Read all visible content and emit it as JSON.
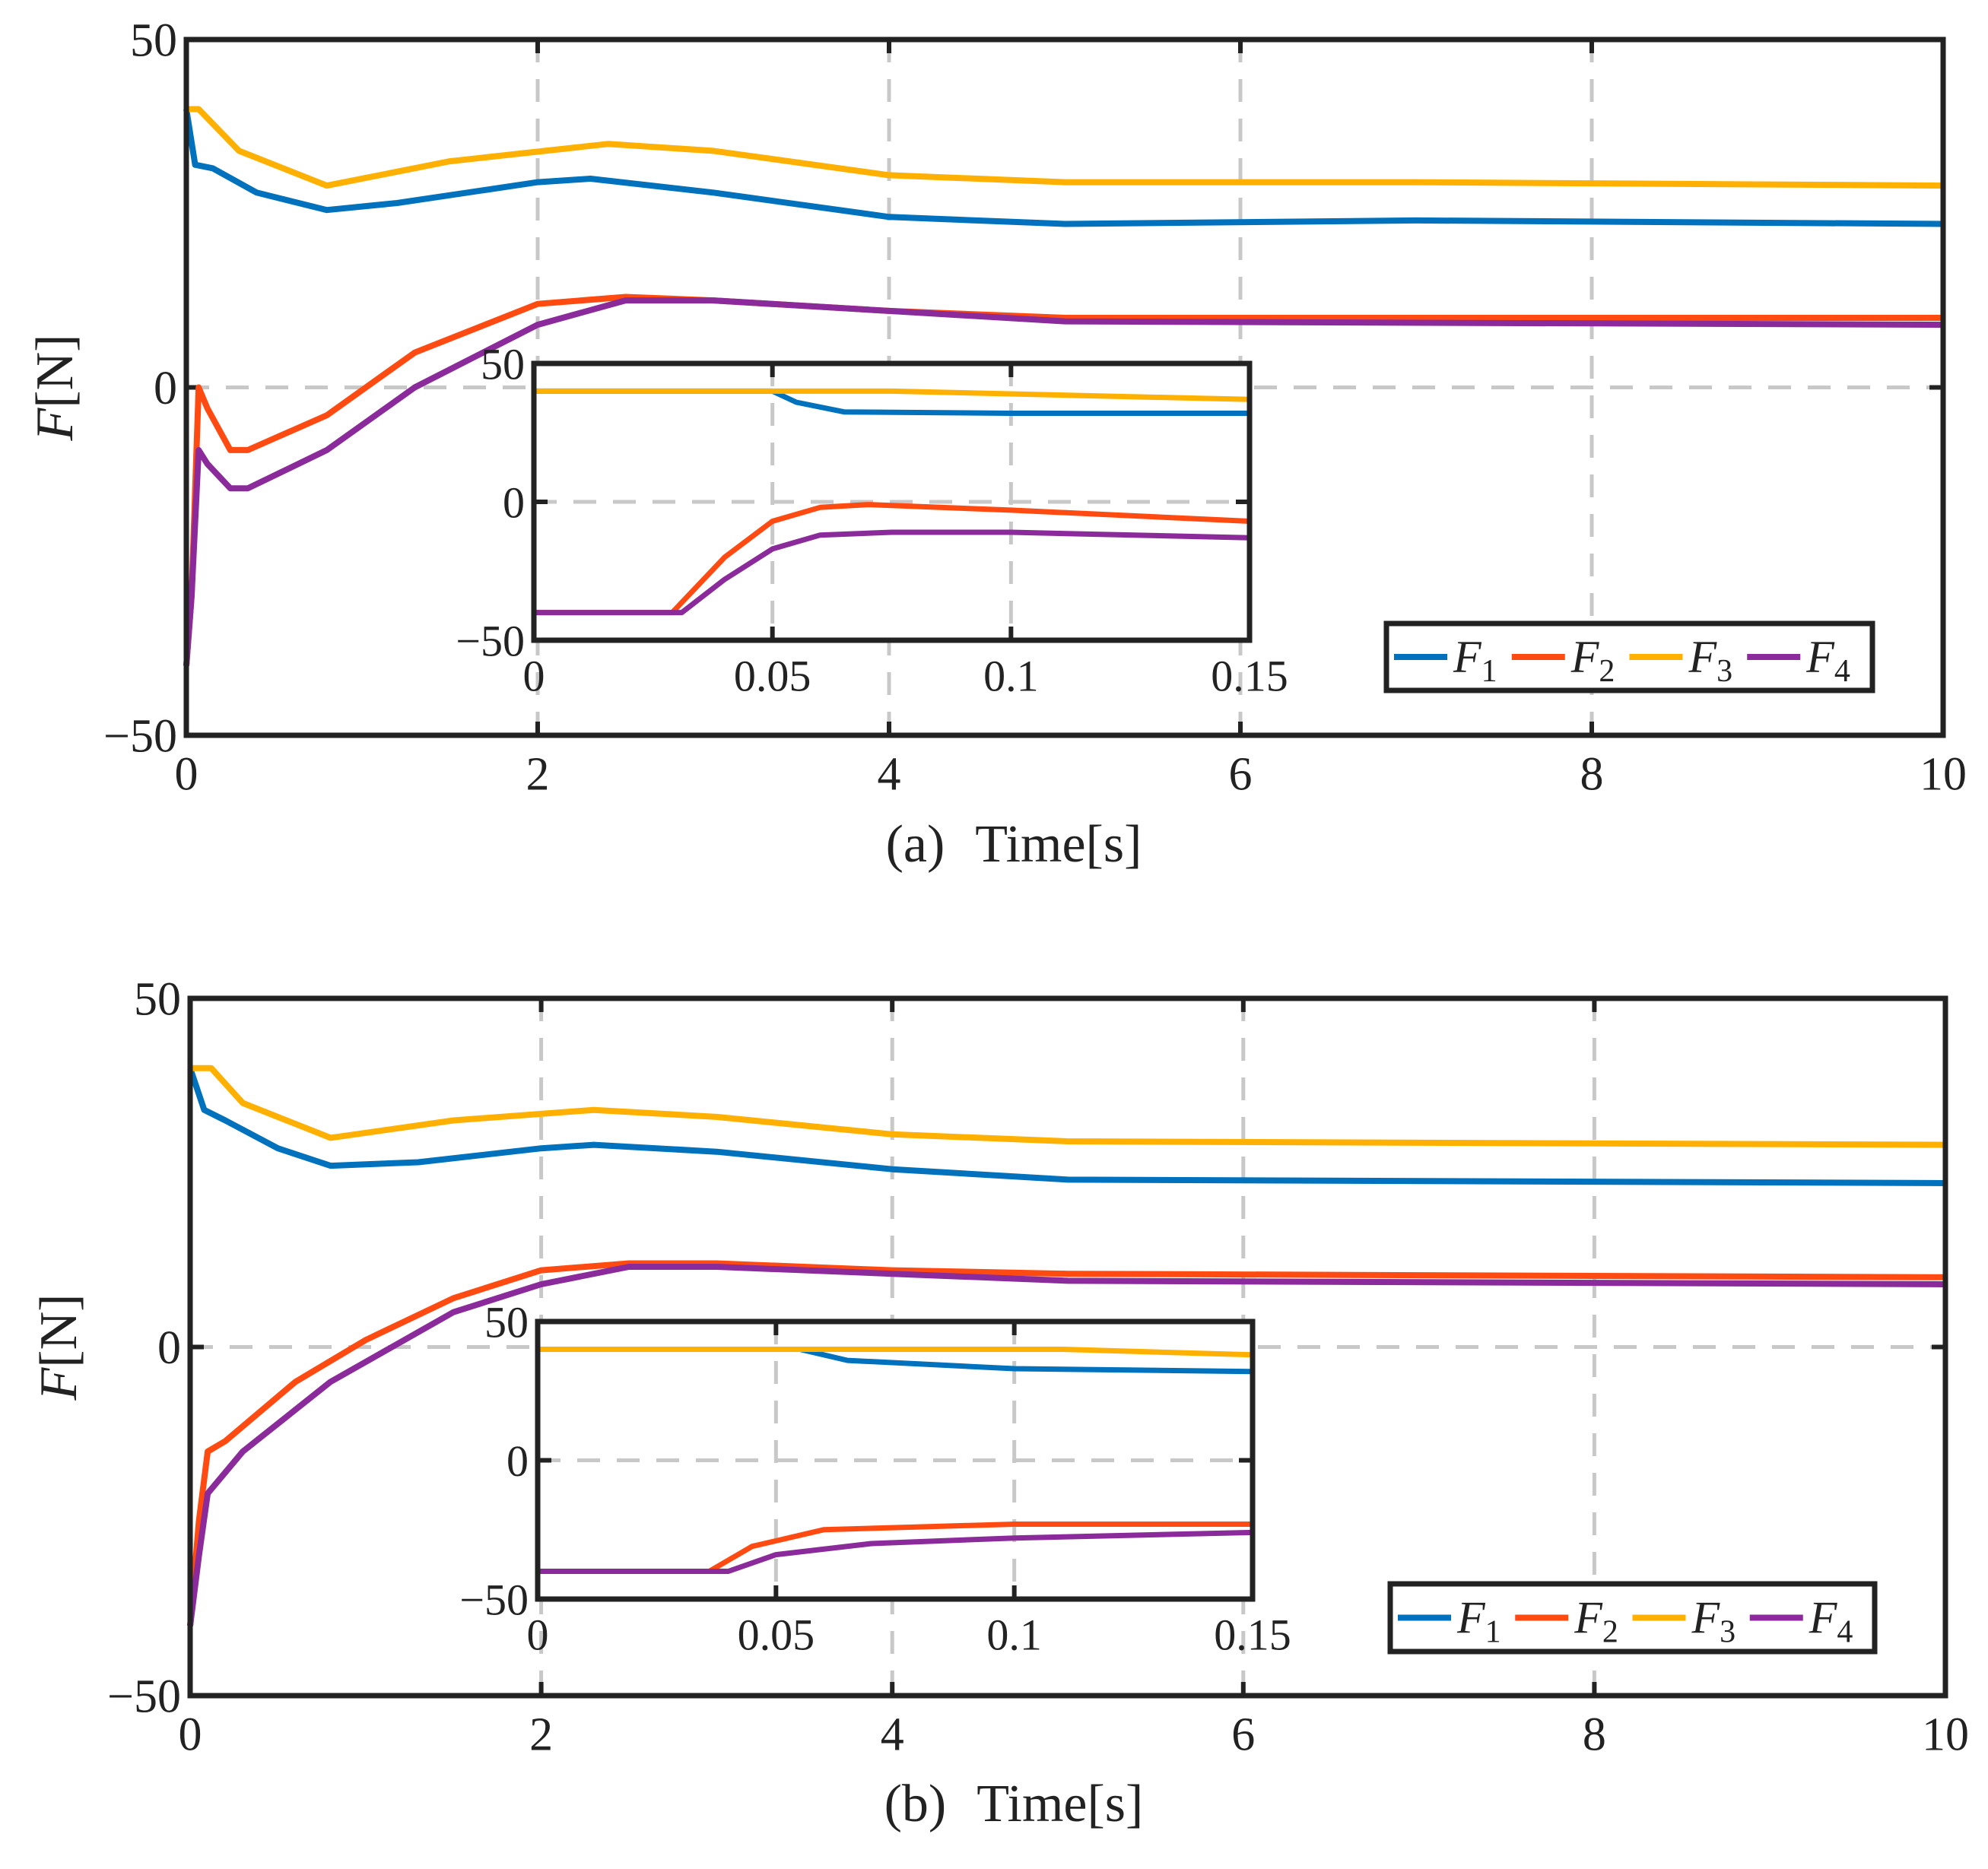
{
  "colors": {
    "F1": "#0072BD",
    "F2": "#FF4B12",
    "F3": "#FFB000",
    "F4": "#8B2A9A",
    "grid": "#c8c8c8",
    "axis": "#222222"
  },
  "chart_data": [
    {
      "id": "a",
      "type": "line",
      "caption_prefix": "(a)",
      "xlabel": "Time[s]",
      "ylabel_var": "F",
      "ylabel_unit": "[N]",
      "xlim": [
        0,
        10
      ],
      "ylim": [
        -50,
        50
      ],
      "xticks": [
        0,
        2,
        4,
        6,
        8,
        10
      ],
      "yticks": [
        -50,
        0,
        50
      ],
      "xtick_labels": [
        "0",
        "2",
        "4",
        "6",
        "8",
        "10"
      ],
      "ytick_labels": [
        "−50",
        "0",
        "50"
      ],
      "legend": {
        "placement": "lower-right",
        "entries": [
          {
            "name": "F",
            "sub": "1"
          },
          {
            "name": "F",
            "sub": "2"
          },
          {
            "name": "F",
            "sub": "3"
          },
          {
            "name": "F",
            "sub": "4"
          }
        ]
      },
      "series": [
        {
          "name": "F1",
          "points": [
            [
              0,
              40
            ],
            [
              0.05,
              32
            ],
            [
              0.15,
              31.5
            ],
            [
              0.4,
              28
            ],
            [
              0.8,
              25.5
            ],
            [
              1.2,
              26.5
            ],
            [
              2,
              29.5
            ],
            [
              2.3,
              30
            ],
            [
              3,
              28
            ],
            [
              4,
              24.5
            ],
            [
              5,
              23.5
            ],
            [
              7,
              24
            ],
            [
              10,
              23.5
            ]
          ]
        },
        {
          "name": "F2",
          "points": [
            [
              0,
              -40
            ],
            [
              0.03,
              -30
            ],
            [
              0.07,
              0
            ],
            [
              0.12,
              -3
            ],
            [
              0.25,
              -9
            ],
            [
              0.35,
              -9
            ],
            [
              0.8,
              -4
            ],
            [
              1.3,
              5
            ],
            [
              2,
              12
            ],
            [
              2.5,
              13
            ],
            [
              3,
              12.5
            ],
            [
              4,
              11
            ],
            [
              5,
              10
            ],
            [
              10,
              10
            ]
          ]
        },
        {
          "name": "F3",
          "points": [
            [
              0,
              40
            ],
            [
              0.07,
              40
            ],
            [
              0.3,
              34
            ],
            [
              0.8,
              29
            ],
            [
              1.5,
              32.5
            ],
            [
              2.4,
              35
            ],
            [
              3,
              34
            ],
            [
              4,
              30.5
            ],
            [
              5,
              29.5
            ],
            [
              7,
              29.5
            ],
            [
              10,
              29
            ]
          ]
        },
        {
          "name": "F4",
          "points": [
            [
              0,
              -40
            ],
            [
              0.03,
              -30
            ],
            [
              0.07,
              -9
            ],
            [
              0.12,
              -11
            ],
            [
              0.25,
              -14.5
            ],
            [
              0.35,
              -14.5
            ],
            [
              0.8,
              -9
            ],
            [
              1.3,
              0
            ],
            [
              2,
              9
            ],
            [
              2.5,
              12.5
            ],
            [
              3,
              12.5
            ],
            [
              4,
              11
            ],
            [
              5,
              9.5
            ],
            [
              10,
              9
            ]
          ]
        }
      ],
      "inset": {
        "xlim": [
          0,
          0.15
        ],
        "ylim": [
          -50,
          50
        ],
        "xticks": [
          0,
          0.05,
          0.1,
          0.15
        ],
        "yticks": [
          -50,
          0,
          50
        ],
        "xtick_labels": [
          "0",
          "0.05",
          "0.1",
          "0.15"
        ],
        "ytick_labels": [
          "−50",
          "0",
          "50"
        ],
        "series": [
          {
            "name": "F1",
            "points": [
              [
                0,
                40
              ],
              [
                0.05,
                40
              ],
              [
                0.055,
                36
              ],
              [
                0.065,
                32.5
              ],
              [
                0.1,
                32
              ],
              [
                0.15,
                32
              ]
            ]
          },
          {
            "name": "F2",
            "points": [
              [
                0,
                -40
              ],
              [
                0.029,
                -40
              ],
              [
                0.04,
                -20
              ],
              [
                0.05,
                -7
              ],
              [
                0.06,
                -2
              ],
              [
                0.07,
                -1
              ],
              [
                0.1,
                -3
              ],
              [
                0.15,
                -7
              ]
            ]
          },
          {
            "name": "F3",
            "points": [
              [
                0,
                40
              ],
              [
                0.075,
                40
              ],
              [
                0.15,
                37
              ]
            ]
          },
          {
            "name": "F4",
            "points": [
              [
                0,
                -40
              ],
              [
                0.031,
                -40
              ],
              [
                0.04,
                -28
              ],
              [
                0.05,
                -17
              ],
              [
                0.06,
                -12
              ],
              [
                0.075,
                -11
              ],
              [
                0.1,
                -11
              ],
              [
                0.15,
                -13
              ]
            ]
          }
        ]
      }
    },
    {
      "id": "b",
      "type": "line",
      "caption_prefix": "(b)",
      "xlabel": "Time[s]",
      "ylabel_var": "F",
      "ylabel_unit": "[N]",
      "xlim": [
        0,
        10
      ],
      "ylim": [
        -50,
        50
      ],
      "xticks": [
        0,
        2,
        4,
        6,
        8,
        10
      ],
      "yticks": [
        -50,
        0,
        50
      ],
      "xtick_labels": [
        "0",
        "2",
        "4",
        "6",
        "8",
        "10"
      ],
      "ytick_labels": [
        "−50",
        "0",
        "50"
      ],
      "legend": {
        "placement": "lower-right",
        "entries": [
          {
            "name": "F",
            "sub": "1"
          },
          {
            "name": "F",
            "sub": "2"
          },
          {
            "name": "F",
            "sub": "3"
          },
          {
            "name": "F",
            "sub": "4"
          }
        ]
      },
      "series": [
        {
          "name": "F1",
          "points": [
            [
              0,
              40
            ],
            [
              0.08,
              34
            ],
            [
              0.2,
              32.5
            ],
            [
              0.5,
              28.5
            ],
            [
              0.8,
              26
            ],
            [
              1.3,
              26.5
            ],
            [
              2,
              28.5
            ],
            [
              2.3,
              29
            ],
            [
              3,
              28
            ],
            [
              4,
              25.5
            ],
            [
              5,
              24
            ],
            [
              10,
              23.5
            ]
          ]
        },
        {
          "name": "F2",
          "points": [
            [
              0,
              -40
            ],
            [
              0.05,
              -25
            ],
            [
              0.1,
              -15
            ],
            [
              0.2,
              -13.5
            ],
            [
              0.6,
              -5
            ],
            [
              1,
              1
            ],
            [
              1.5,
              7
            ],
            [
              2,
              11
            ],
            [
              2.5,
              12
            ],
            [
              3,
              12
            ],
            [
              4,
              11
            ],
            [
              5,
              10.5
            ],
            [
              10,
              10
            ]
          ]
        },
        {
          "name": "F3",
          "points": [
            [
              0,
              40
            ],
            [
              0.12,
              40
            ],
            [
              0.3,
              35
            ],
            [
              0.8,
              30
            ],
            [
              1.5,
              32.5
            ],
            [
              2.3,
              34
            ],
            [
              3,
              33
            ],
            [
              4,
              30.5
            ],
            [
              5,
              29.5
            ],
            [
              10,
              29
            ]
          ]
        },
        {
          "name": "F4",
          "points": [
            [
              0,
              -40
            ],
            [
              0.05,
              -30
            ],
            [
              0.1,
              -21
            ],
            [
              0.3,
              -15
            ],
            [
              0.8,
              -5
            ],
            [
              1.5,
              5
            ],
            [
              2,
              9
            ],
            [
              2.5,
              11.5
            ],
            [
              3,
              11.5
            ],
            [
              4,
              10.5
            ],
            [
              5,
              9.5
            ],
            [
              10,
              9
            ]
          ]
        }
      ],
      "inset": {
        "xlim": [
          0,
          0.15
        ],
        "ylim": [
          -50,
          50
        ],
        "xticks": [
          0,
          0.05,
          0.1,
          0.15
        ],
        "yticks": [
          -50,
          0,
          50
        ],
        "xtick_labels": [
          "0",
          "0.05",
          "0.1",
          "0.15"
        ],
        "ytick_labels": [
          "−50",
          "0",
          "50"
        ],
        "series": [
          {
            "name": "F1",
            "points": [
              [
                0,
                40
              ],
              [
                0.055,
                40
              ],
              [
                0.065,
                36
              ],
              [
                0.1,
                33
              ],
              [
                0.15,
                32
              ]
            ]
          },
          {
            "name": "F2",
            "points": [
              [
                0,
                -40
              ],
              [
                0.036,
                -40
              ],
              [
                0.045,
                -31
              ],
              [
                0.06,
                -25
              ],
              [
                0.08,
                -24
              ],
              [
                0.1,
                -23
              ],
              [
                0.15,
                -23
              ]
            ]
          },
          {
            "name": "F3",
            "points": [
              [
                0,
                40
              ],
              [
                0.11,
                40
              ],
              [
                0.15,
                38
              ]
            ]
          },
          {
            "name": "F4",
            "points": [
              [
                0,
                -40
              ],
              [
                0.04,
                -40
              ],
              [
                0.05,
                -34
              ],
              [
                0.07,
                -30
              ],
              [
                0.1,
                -28
              ],
              [
                0.15,
                -26
              ]
            ]
          }
        ]
      }
    }
  ]
}
